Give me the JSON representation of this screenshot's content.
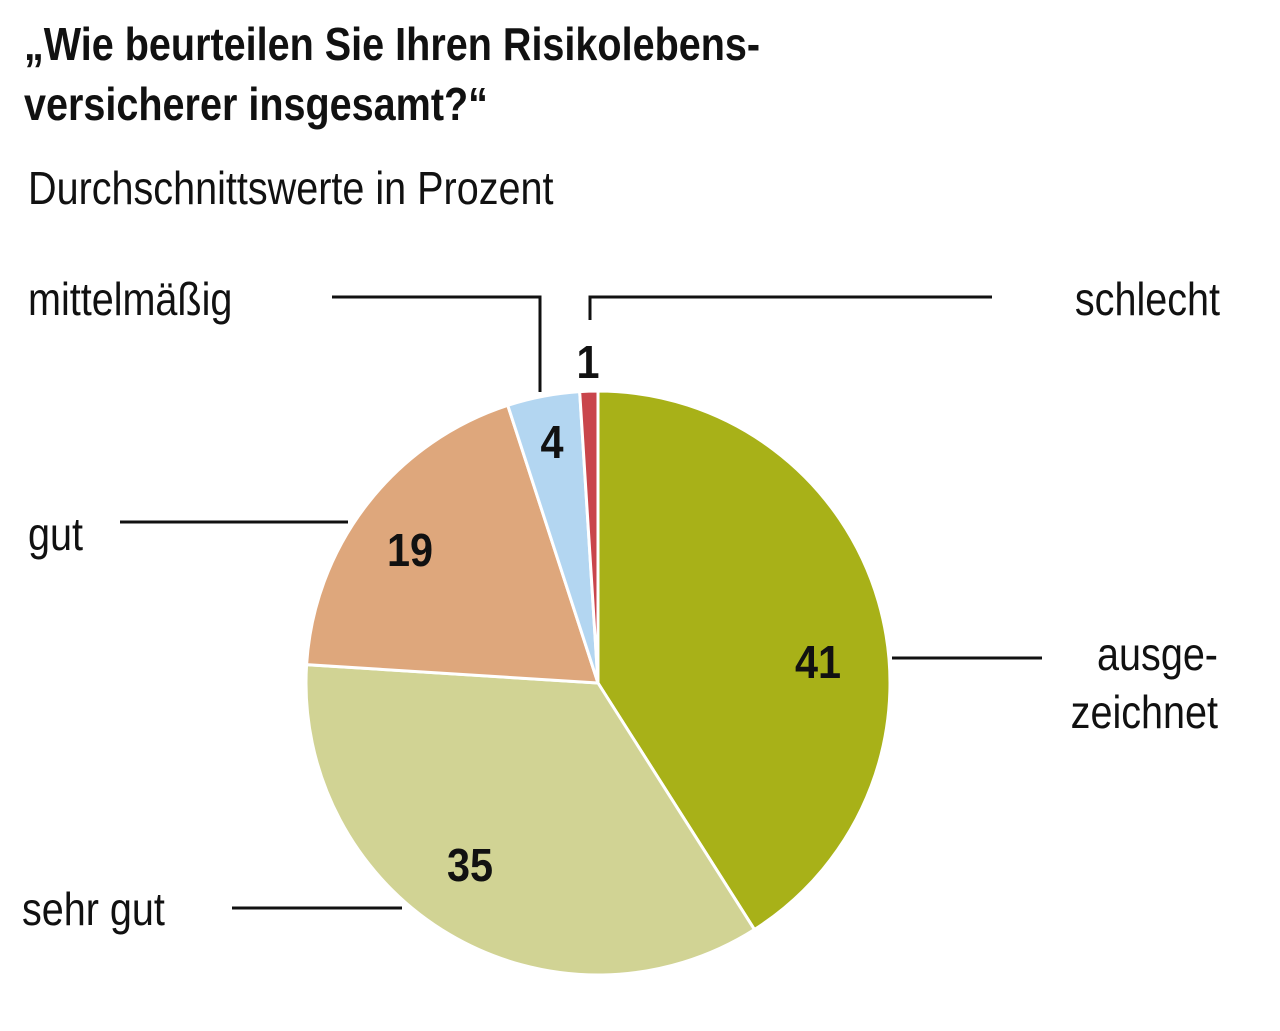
{
  "chart_data": {
    "type": "pie",
    "title": "„Wie beurteilen Sie Ihren Risikolebens-versicherer insgesamt?“",
    "title_lines": [
      "„Wie beurteilen Sie Ihren Risikolebens-",
      "versicherer insgesamt?“"
    ],
    "subtitle": "Durchschnittswerte in Prozent",
    "slices": [
      {
        "label": "ausge-zeichnet",
        "label_lines": [
          "ausge-",
          "zeichnet"
        ],
        "value": 41,
        "color": "#a8b118"
      },
      {
        "label": "sehr gut",
        "label_lines": [
          "sehr gut"
        ],
        "value": 35,
        "color": "#d1d394"
      },
      {
        "label": "gut",
        "label_lines": [
          "gut"
        ],
        "value": 19,
        "color": "#dea77c"
      },
      {
        "label": "mittelmäßig",
        "label_lines": [
          "mittelmäßig"
        ],
        "value": 4,
        "color": "#b3d6f1"
      },
      {
        "label": "schlecht",
        "label_lines": [
          "schlecht"
        ],
        "value": 1,
        "color": "#c9454b"
      }
    ],
    "legend": "none"
  }
}
